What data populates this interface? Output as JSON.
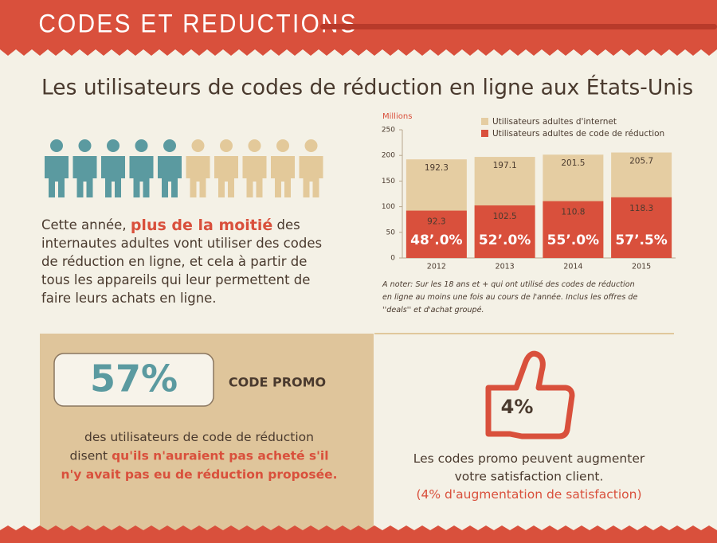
{
  "header": {
    "title": "CODES ET REDUCTIONS"
  },
  "headline": "Les utilisateurs de codes de réduction en ligne aux États-Unis",
  "intro": {
    "lines": [
      [
        "Cette année, ",
        {
          "text": "plus de la moitié",
          "accent": true
        },
        " des"
      ],
      [
        "internautes adultes vont utiliser des codes"
      ],
      [
        "de réduction en ligne, et cela à partir de"
      ],
      [
        "tous les appareils qui leur permettent de"
      ],
      [
        "faire leurs achats en ligne."
      ]
    ]
  },
  "chart_data": {
    "type": "bar",
    "y_label": "Millions",
    "categories": [
      "2012",
      "2013",
      "2014",
      "2015"
    ],
    "series": [
      {
        "name": "Utilisateurs adultes d'internet",
        "color": "#e5cda2",
        "values": [
          192.3,
          197.1,
          201.5,
          205.7
        ]
      },
      {
        "name": "Utilisateurs adultes de code de réduction",
        "color": "#d9503c",
        "values": [
          92.3,
          102.5,
          110.8,
          118.3
        ]
      }
    ],
    "share_labels": [
      "48’.0%",
      "52’.0%",
      "55’.0%",
      "57’.5%"
    ],
    "ylim": [
      0,
      250
    ],
    "yticks": [
      0,
      50,
      100,
      150,
      200,
      250
    ],
    "grid": false,
    "note": [
      "A noter: Sur les 18 ans et + qui ont utilisé des codes de réduction",
      "en ligne au moins une fois au cours de l'année. Inclus les offres de",
      "''deals''  et d'achat groupé."
    ]
  },
  "promo": {
    "figure": "57%",
    "label": "CODE PROMO",
    "lines": [
      [
        "des utilisateurs de code de réduction"
      ],
      [
        "disent ",
        {
          "text": "qu'ils n'auraient pas acheté s'il",
          "accent": true
        }
      ],
      [
        {
          "text": "n'y avait pas eu de réduction proposée.",
          "accent": true
        }
      ]
    ]
  },
  "satisfaction": {
    "figure": "4%",
    "lines": [
      [
        "Les codes promo peuvent augmenter"
      ],
      [
        "votre satisfaction client."
      ],
      [
        {
          "text": "(4% d'augmentation de satisfaction)",
          "accent": true
        }
      ]
    ]
  }
}
